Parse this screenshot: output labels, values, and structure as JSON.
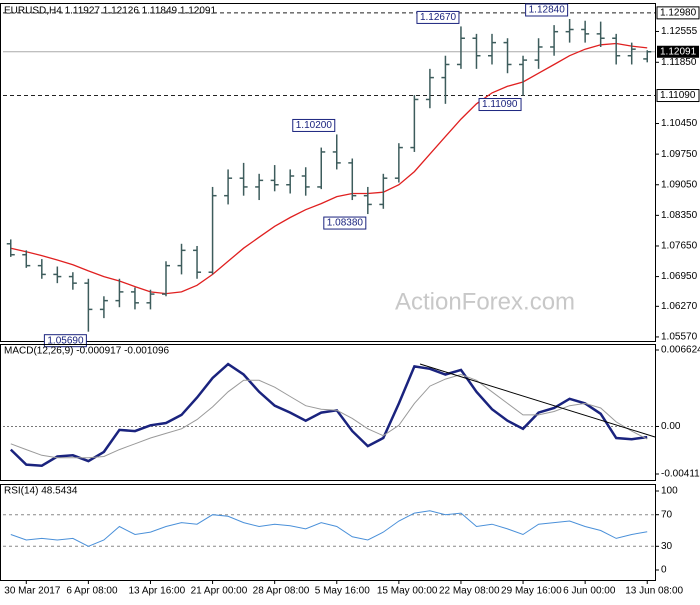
{
  "chart_data": [
    {
      "type": "ohlc",
      "title": "EURUSD,H4  1.11927 1.12126 1.11849 1.12091",
      "watermark": "ActionForex.com",
      "color": "#3d5c5c",
      "categories": [
        null,
        "30 Mar 2017",
        null,
        null,
        null,
        "6 Apr 08:00",
        null,
        null,
        null,
        "13 Apr 16:00",
        null,
        null,
        null,
        "21 Apr 00:00",
        null,
        null,
        null,
        "28 Apr 08:00",
        null,
        null,
        null,
        "5 May 16:00",
        null,
        null,
        null,
        "15 May 00:00",
        null,
        null,
        null,
        "22 May 08:00",
        null,
        null,
        null,
        "29 May 16:00",
        null,
        null,
        null,
        "6 Jun 00:00",
        null,
        null,
        null,
        "13 Jun 08:00"
      ],
      "open": [
        1.077,
        1.0745,
        1.072,
        1.07,
        1.0695,
        1.068,
        1.062,
        1.064,
        1.066,
        1.0635,
        1.0655,
        1.072,
        1.0755,
        1.0705,
        1.088,
        1.092,
        1.09,
        1.0915,
        1.0905,
        1.0925,
        1.09,
        1.098,
        1.0955,
        1.088,
        1.086,
        1.092,
        1.099,
        1.11,
        1.115,
        1.118,
        1.124,
        1.12,
        1.123,
        1.118,
        1.119,
        1.122,
        1.1255,
        1.126,
        1.125,
        1.124,
        1.12,
        1.11927
      ],
      "high": [
        1.078,
        1.0755,
        1.0735,
        1.0718,
        1.0705,
        1.069,
        1.065,
        1.069,
        1.067,
        1.0665,
        1.073,
        1.077,
        1.0765,
        1.09,
        1.094,
        1.0955,
        1.093,
        1.095,
        1.094,
        1.0945,
        1.099,
        1.102,
        1.0965,
        1.09,
        1.093,
        1.1,
        1.111,
        1.117,
        1.12,
        1.1267,
        1.125,
        1.125,
        1.124,
        1.12,
        1.124,
        1.127,
        1.1284,
        1.128,
        1.1278,
        1.125,
        1.123,
        1.12126
      ],
      "low": [
        1.074,
        1.0715,
        1.069,
        1.068,
        1.0665,
        1.0569,
        1.06,
        1.0625,
        1.062,
        1.062,
        1.065,
        1.07,
        1.069,
        1.07,
        1.086,
        1.088,
        1.087,
        1.089,
        1.0885,
        1.088,
        1.0895,
        1.094,
        1.087,
        1.0838,
        1.085,
        1.091,
        1.098,
        1.108,
        1.109,
        1.117,
        1.117,
        1.118,
        1.116,
        1.1109,
        1.117,
        1.12,
        1.123,
        1.123,
        1.122,
        1.118,
        1.118,
        1.11849
      ],
      "close": [
        1.0745,
        1.072,
        1.07,
        1.0695,
        1.068,
        1.062,
        1.064,
        1.066,
        1.0635,
        1.0655,
        1.072,
        1.0755,
        1.0705,
        1.088,
        1.092,
        1.09,
        1.0915,
        1.0905,
        1.0925,
        1.09,
        1.098,
        1.0955,
        1.088,
        1.086,
        1.092,
        1.099,
        1.11,
        1.115,
        1.118,
        1.124,
        1.12,
        1.123,
        1.118,
        1.119,
        1.122,
        1.1255,
        1.126,
        1.125,
        1.124,
        1.12,
        1.1215,
        1.12091
      ],
      "ma": {
        "color": "#e02020",
        "values": [
          1.076,
          1.0752,
          1.0743,
          1.0733,
          1.0722,
          1.0708,
          1.0695,
          1.0685,
          1.0672,
          1.066,
          1.0656,
          1.066,
          1.0675,
          1.07,
          1.073,
          1.076,
          1.0785,
          1.081,
          1.083,
          1.0848,
          1.0862,
          1.0878,
          1.0885,
          1.0885,
          1.0888,
          1.0905,
          1.0935,
          1.0975,
          1.1015,
          1.1055,
          1.109,
          1.1115,
          1.113,
          1.114,
          1.116,
          1.118,
          1.12,
          1.1215,
          1.1225,
          1.1228,
          1.1222,
          1.1218
        ]
      },
      "levels": [
        {
          "value": 1.1298,
          "label": "1.12980"
        },
        {
          "value": 1.1109,
          "label": "1.11090"
        }
      ],
      "last_price": {
        "value": 1.12091,
        "label": "1.12091"
      },
      "annotations": [
        {
          "value": 1.1267,
          "label": "1.12670"
        },
        {
          "value": 1.1284,
          "label": "1.12840"
        },
        {
          "value": 1.102,
          "label": "1.10200"
        },
        {
          "value": 1.1109,
          "label": "1.11090"
        },
        {
          "value": 1.0838,
          "label": "1.08380"
        },
        {
          "value": 1.0569,
          "label": "1.05690"
        }
      ],
      "ylim": [
        1.055,
        1.1316
      ],
      "yticks": [
        {
          "value": 1.12555,
          "label": "1.12555"
        },
        {
          "value": 1.1185,
          "label": "1.11850"
        },
        {
          "value": 1.1045,
          "label": "1.10450"
        },
        {
          "value": 1.0975,
          "label": "1.09750"
        },
        {
          "value": 1.0905,
          "label": "1.09050"
        },
        {
          "value": 1.0835,
          "label": "1.08350"
        },
        {
          "value": 1.0765,
          "label": "1.07650"
        },
        {
          "value": 1.0695,
          "label": "1.06950"
        },
        {
          "value": 1.0627,
          "label": "1.06270"
        },
        {
          "value": 1.0557,
          "label": "1.05570"
        }
      ]
    },
    {
      "type": "line",
      "title": "MACD(12,26,9) -0.000917 -0.001096",
      "zero_line": true,
      "series": [
        {
          "color": "#1a237e",
          "line_width": 2.5,
          "values": [
            -0.002,
            -0.0033,
            -0.0034,
            -0.0026,
            -0.0025,
            -0.003,
            -0.0022,
            -0.0003,
            -0.0004,
            0.0001,
            0.0003,
            0.001,
            0.0025,
            0.0042,
            0.0054,
            0.0045,
            0.003,
            0.0018,
            0.0012,
            0.0005,
            0.0012,
            0.0014,
            -0.0004,
            -0.0017,
            -0.001,
            0.002,
            0.0052,
            0.005,
            0.0045,
            0.0049,
            0.003,
            0.0015,
            0.0005,
            -0.0002,
            0.0012,
            0.0016,
            0.0024,
            0.002,
            0.0011,
            -0.001,
            -0.0011,
            -0.000917
          ]
        },
        {
          "color": "#9a9a9a",
          "line_width": 1,
          "values": [
            -0.0015,
            -0.002,
            -0.0025,
            -0.0027,
            -0.0027,
            -0.0027,
            -0.0026,
            -0.002,
            -0.0015,
            -0.001,
            -0.0006,
            -0.0002,
            0.0006,
            0.0017,
            0.003,
            0.004,
            0.004,
            0.0034,
            0.0026,
            0.0018,
            0.0015,
            0.0014,
            0.0007,
            -0.0002,
            -0.0008,
            0.0001,
            0.002,
            0.0035,
            0.0041,
            0.0045,
            0.004,
            0.003,
            0.002,
            0.001,
            0.001,
            0.0013,
            0.0018,
            0.002,
            0.0016,
            0.0004,
            -0.0004,
            -0.001096
          ]
        }
      ],
      "ylim": [
        -0.004116,
        0.006624
      ],
      "yticks": [
        0.006624,
        {
          "value": 0,
          "label": "0.00"
        },
        -0.004116
      ]
    },
    {
      "type": "line",
      "title": "RSI(14) 48.5434",
      "levels": [
        70,
        30
      ],
      "series": [
        {
          "color": "#4a90d9",
          "line_width": 1,
          "values": [
            45,
            38,
            40,
            38,
            40,
            30,
            38,
            55,
            45,
            48,
            55,
            60,
            58,
            70,
            68,
            60,
            55,
            58,
            56,
            52,
            60,
            55,
            42,
            38,
            48,
            62,
            72,
            75,
            70,
            72,
            55,
            58,
            52,
            45,
            58,
            60,
            62,
            55,
            50,
            40,
            45,
            48.5434
          ]
        }
      ],
      "ylim": [
        0,
        100
      ],
      "yticks": [
        100,
        70,
        30,
        0
      ]
    }
  ]
}
